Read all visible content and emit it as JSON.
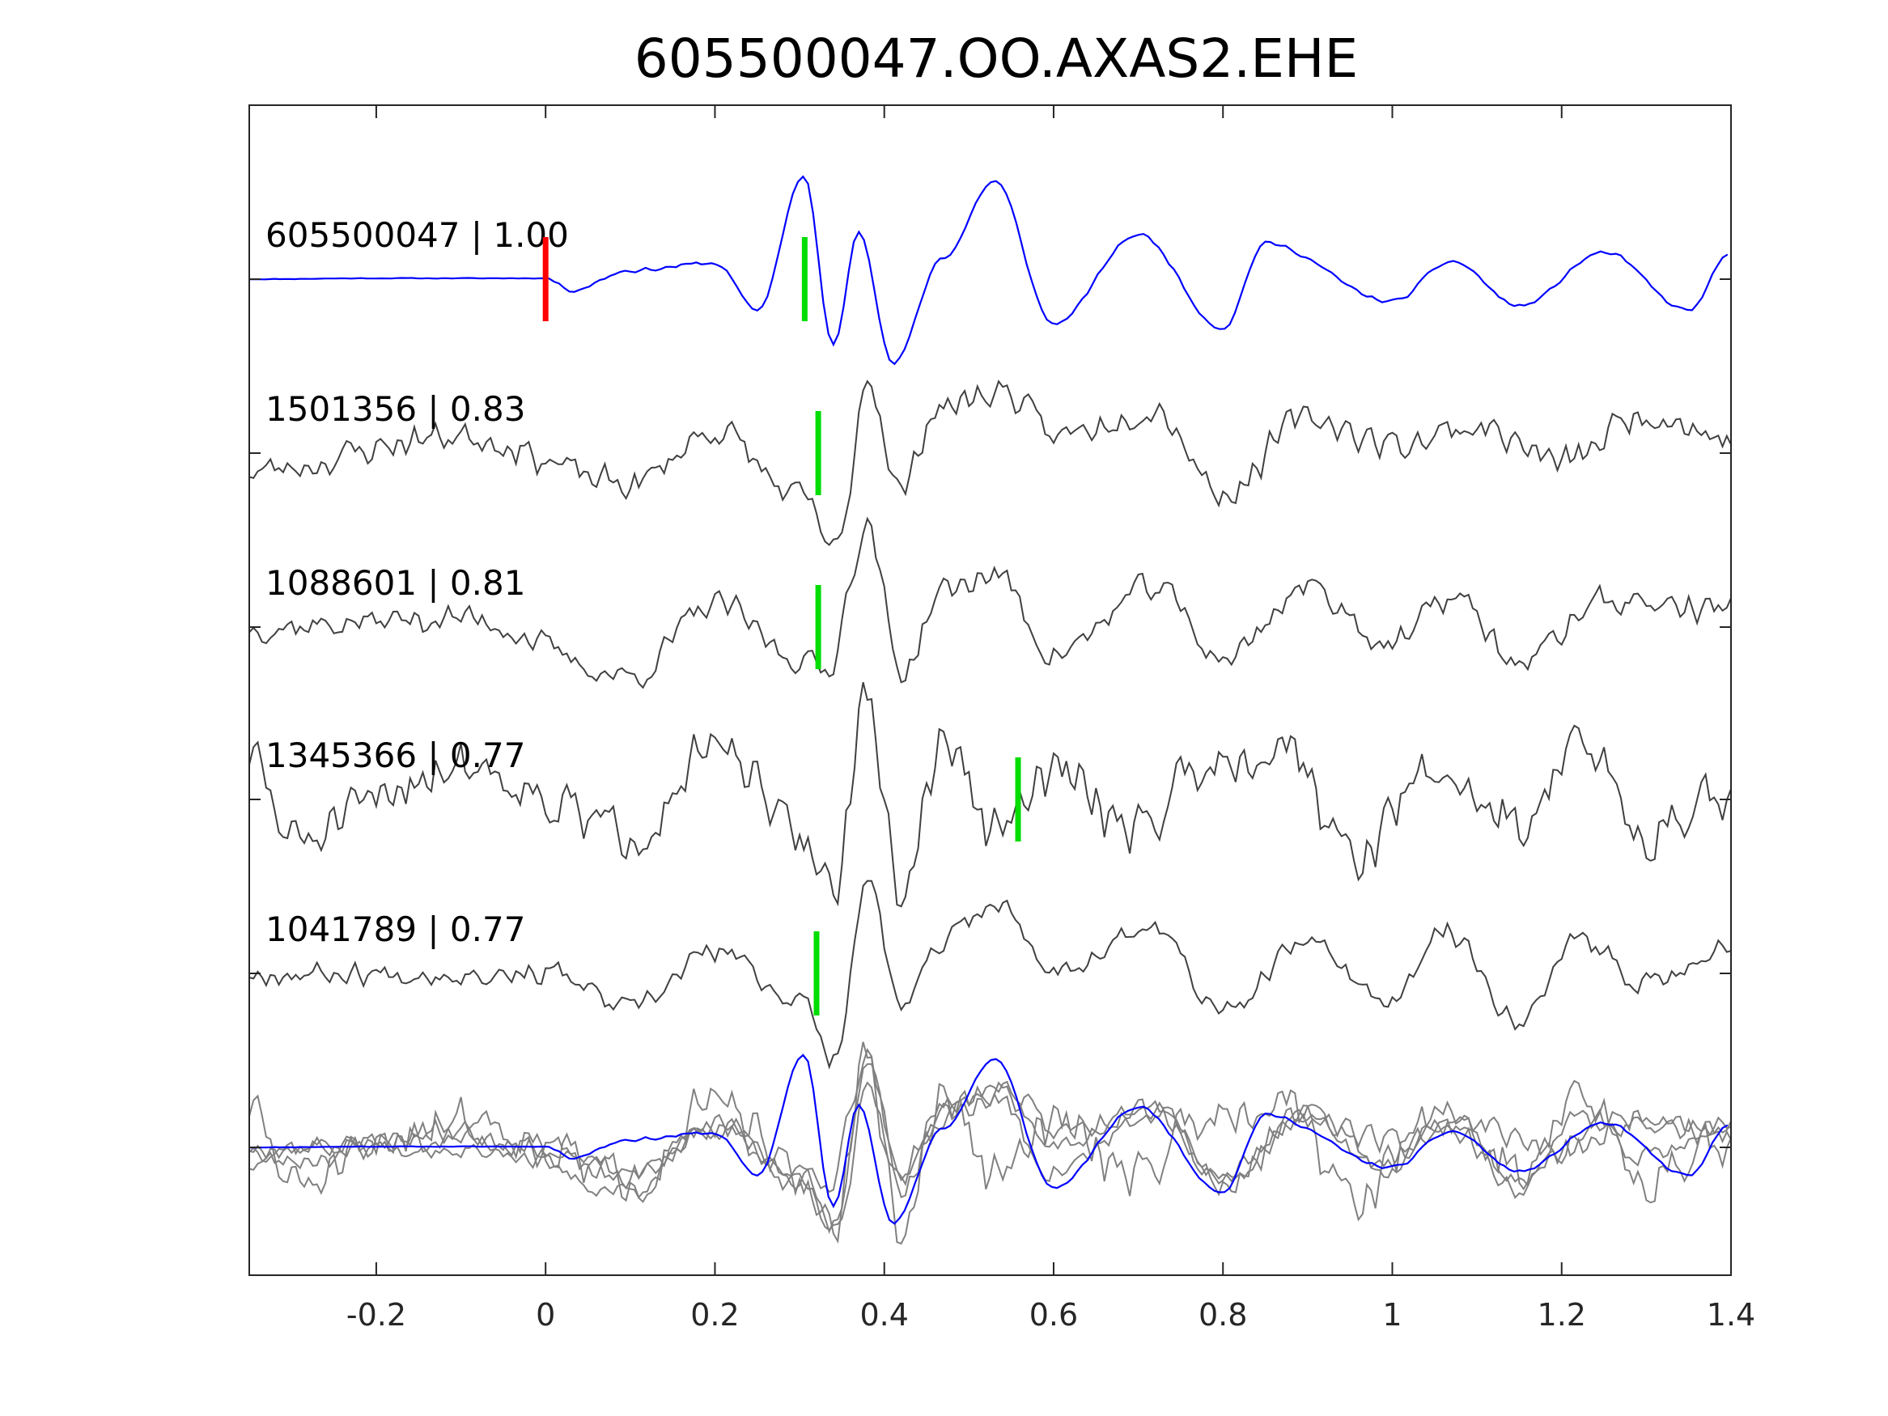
{
  "chart_data": {
    "type": "line",
    "title": "605500047.OO.AXAS2.EHE",
    "xlabel": "",
    "ylabel": "",
    "xlim": [
      -0.35,
      1.4
    ],
    "xticks": [
      -0.2,
      0,
      0.2,
      0.4,
      0.6,
      0.8,
      1,
      1.2,
      1.4
    ],
    "xtick_labels": [
      "-0.2",
      "0",
      "0.2",
      "0.4",
      "0.6",
      "0.8",
      "1",
      "1.2",
      "1.4"
    ],
    "grid": false,
    "colors": {
      "template": "#0000ff",
      "matched": "#404040",
      "overlay": "#808080",
      "origin_marker": "#ff0000",
      "pick_marker": "#00dd00",
      "axes": "#262626"
    },
    "traces": [
      {
        "label": "605500047 | 1.00",
        "id": "605500047",
        "cc": 1.0,
        "role": "template",
        "pick_time": 0.306,
        "origin_marker": 0.0,
        "envelope": [
          [
            -0.35,
            0.0
          ],
          [
            -0.2,
            0.01
          ],
          [
            -0.05,
            0.01
          ],
          [
            0.0,
            0.01
          ],
          [
            0.03,
            -0.12
          ],
          [
            0.1,
            0.1
          ],
          [
            0.2,
            0.18
          ],
          [
            0.25,
            -0.35
          ],
          [
            0.305,
            1.15
          ],
          [
            0.34,
            -0.75
          ],
          [
            0.37,
            0.55
          ],
          [
            0.41,
            -0.95
          ],
          [
            0.47,
            0.25
          ],
          [
            0.53,
            1.1
          ],
          [
            0.6,
            -0.5
          ],
          [
            0.7,
            0.5
          ],
          [
            0.8,
            -0.55
          ],
          [
            0.85,
            0.4
          ],
          [
            1.0,
            -0.25
          ],
          [
            1.07,
            0.2
          ],
          [
            1.15,
            -0.3
          ],
          [
            1.25,
            0.3
          ],
          [
            1.35,
            -0.35
          ],
          [
            1.4,
            0.3
          ]
        ],
        "noise": 0.03,
        "seed": 11
      },
      {
        "label": "1501356 | 0.83",
        "id": "1501356",
        "cc": 0.83,
        "role": "matched",
        "pick_time": 0.322,
        "envelope": [
          [
            -0.35,
            -0.2
          ],
          [
            -0.1,
            0.2
          ],
          [
            0.1,
            -0.35
          ],
          [
            0.2,
            0.25
          ],
          [
            0.3,
            -0.5
          ],
          [
            0.345,
            -1.1
          ],
          [
            0.38,
            0.85
          ],
          [
            0.42,
            -0.45
          ],
          [
            0.46,
            0.5
          ],
          [
            0.54,
            0.7
          ],
          [
            0.6,
            0.2
          ],
          [
            0.72,
            0.5
          ],
          [
            0.8,
            -0.45
          ],
          [
            0.9,
            0.4
          ],
          [
            1.0,
            0.1
          ],
          [
            1.1,
            0.3
          ],
          [
            1.2,
            -0.1
          ],
          [
            1.3,
            0.45
          ],
          [
            1.4,
            0.15
          ]
        ],
        "noise": 0.22,
        "seed": 23
      },
      {
        "label": "1088601 | 0.81",
        "id": "1088601",
        "cc": 0.81,
        "role": "matched",
        "pick_time": 0.322,
        "envelope": [
          [
            -0.35,
            0.0
          ],
          [
            -0.1,
            0.1
          ],
          [
            0.1,
            -0.55
          ],
          [
            0.2,
            0.25
          ],
          [
            0.3,
            -0.35
          ],
          [
            0.33,
            -0.5
          ],
          [
            0.38,
            1.1
          ],
          [
            0.42,
            -0.5
          ],
          [
            0.47,
            0.4
          ],
          [
            0.53,
            0.6
          ],
          [
            0.6,
            -0.3
          ],
          [
            0.72,
            0.45
          ],
          [
            0.8,
            -0.35
          ],
          [
            0.9,
            0.45
          ],
          [
            1.0,
            -0.2
          ],
          [
            1.07,
            0.35
          ],
          [
            1.15,
            -0.4
          ],
          [
            1.25,
            0.3
          ],
          [
            1.4,
            0.2
          ]
        ],
        "noise": 0.2,
        "seed": 37
      },
      {
        "label": "1345366 | 0.77",
        "id": "1345366",
        "cc": 0.77,
        "role": "matched",
        "pick_time": 0.558,
        "envelope": [
          [
            -0.35,
            0.5
          ],
          [
            -0.3,
            -0.45
          ],
          [
            -0.1,
            0.4
          ],
          [
            0.1,
            -0.35
          ],
          [
            0.2,
            0.55
          ],
          [
            0.3,
            -0.4
          ],
          [
            0.34,
            -0.95
          ],
          [
            0.38,
            1.05
          ],
          [
            0.42,
            -1.05
          ],
          [
            0.47,
            0.65
          ],
          [
            0.53,
            -0.4
          ],
          [
            0.6,
            0.3
          ],
          [
            0.7,
            -0.3
          ],
          [
            0.78,
            0.45
          ],
          [
            0.88,
            0.6
          ],
          [
            0.95,
            -0.65
          ],
          [
            1.05,
            0.3
          ],
          [
            1.15,
            -0.25
          ],
          [
            1.22,
            0.6
          ],
          [
            1.3,
            -0.35
          ],
          [
            1.4,
            0.0
          ]
        ],
        "noise": 0.38,
        "seed": 51
      },
      {
        "label": "1041789 | 0.77",
        "id": "1041789",
        "cc": 0.77,
        "role": "matched",
        "pick_time": 0.32,
        "envelope": [
          [
            -0.35,
            0.0
          ],
          [
            -0.05,
            0.0
          ],
          [
            0.0,
            0.02
          ],
          [
            0.1,
            -0.4
          ],
          [
            0.2,
            0.25
          ],
          [
            0.3,
            -0.3
          ],
          [
            0.34,
            -0.95
          ],
          [
            0.38,
            1.05
          ],
          [
            0.42,
            -0.4
          ],
          [
            0.47,
            0.35
          ],
          [
            0.53,
            0.8
          ],
          [
            0.6,
            0.05
          ],
          [
            0.72,
            0.5
          ],
          [
            0.8,
            -0.45
          ],
          [
            0.9,
            0.35
          ],
          [
            1.0,
            -0.35
          ],
          [
            1.06,
            0.5
          ],
          [
            1.15,
            -0.5
          ],
          [
            1.22,
            0.35
          ],
          [
            1.3,
            -0.1
          ],
          [
            1.4,
            0.3
          ]
        ],
        "noise": 0.16,
        "seed": 67
      }
    ],
    "overlay": {
      "description": "stacked overlay of all traces",
      "member_count": 5
    }
  }
}
